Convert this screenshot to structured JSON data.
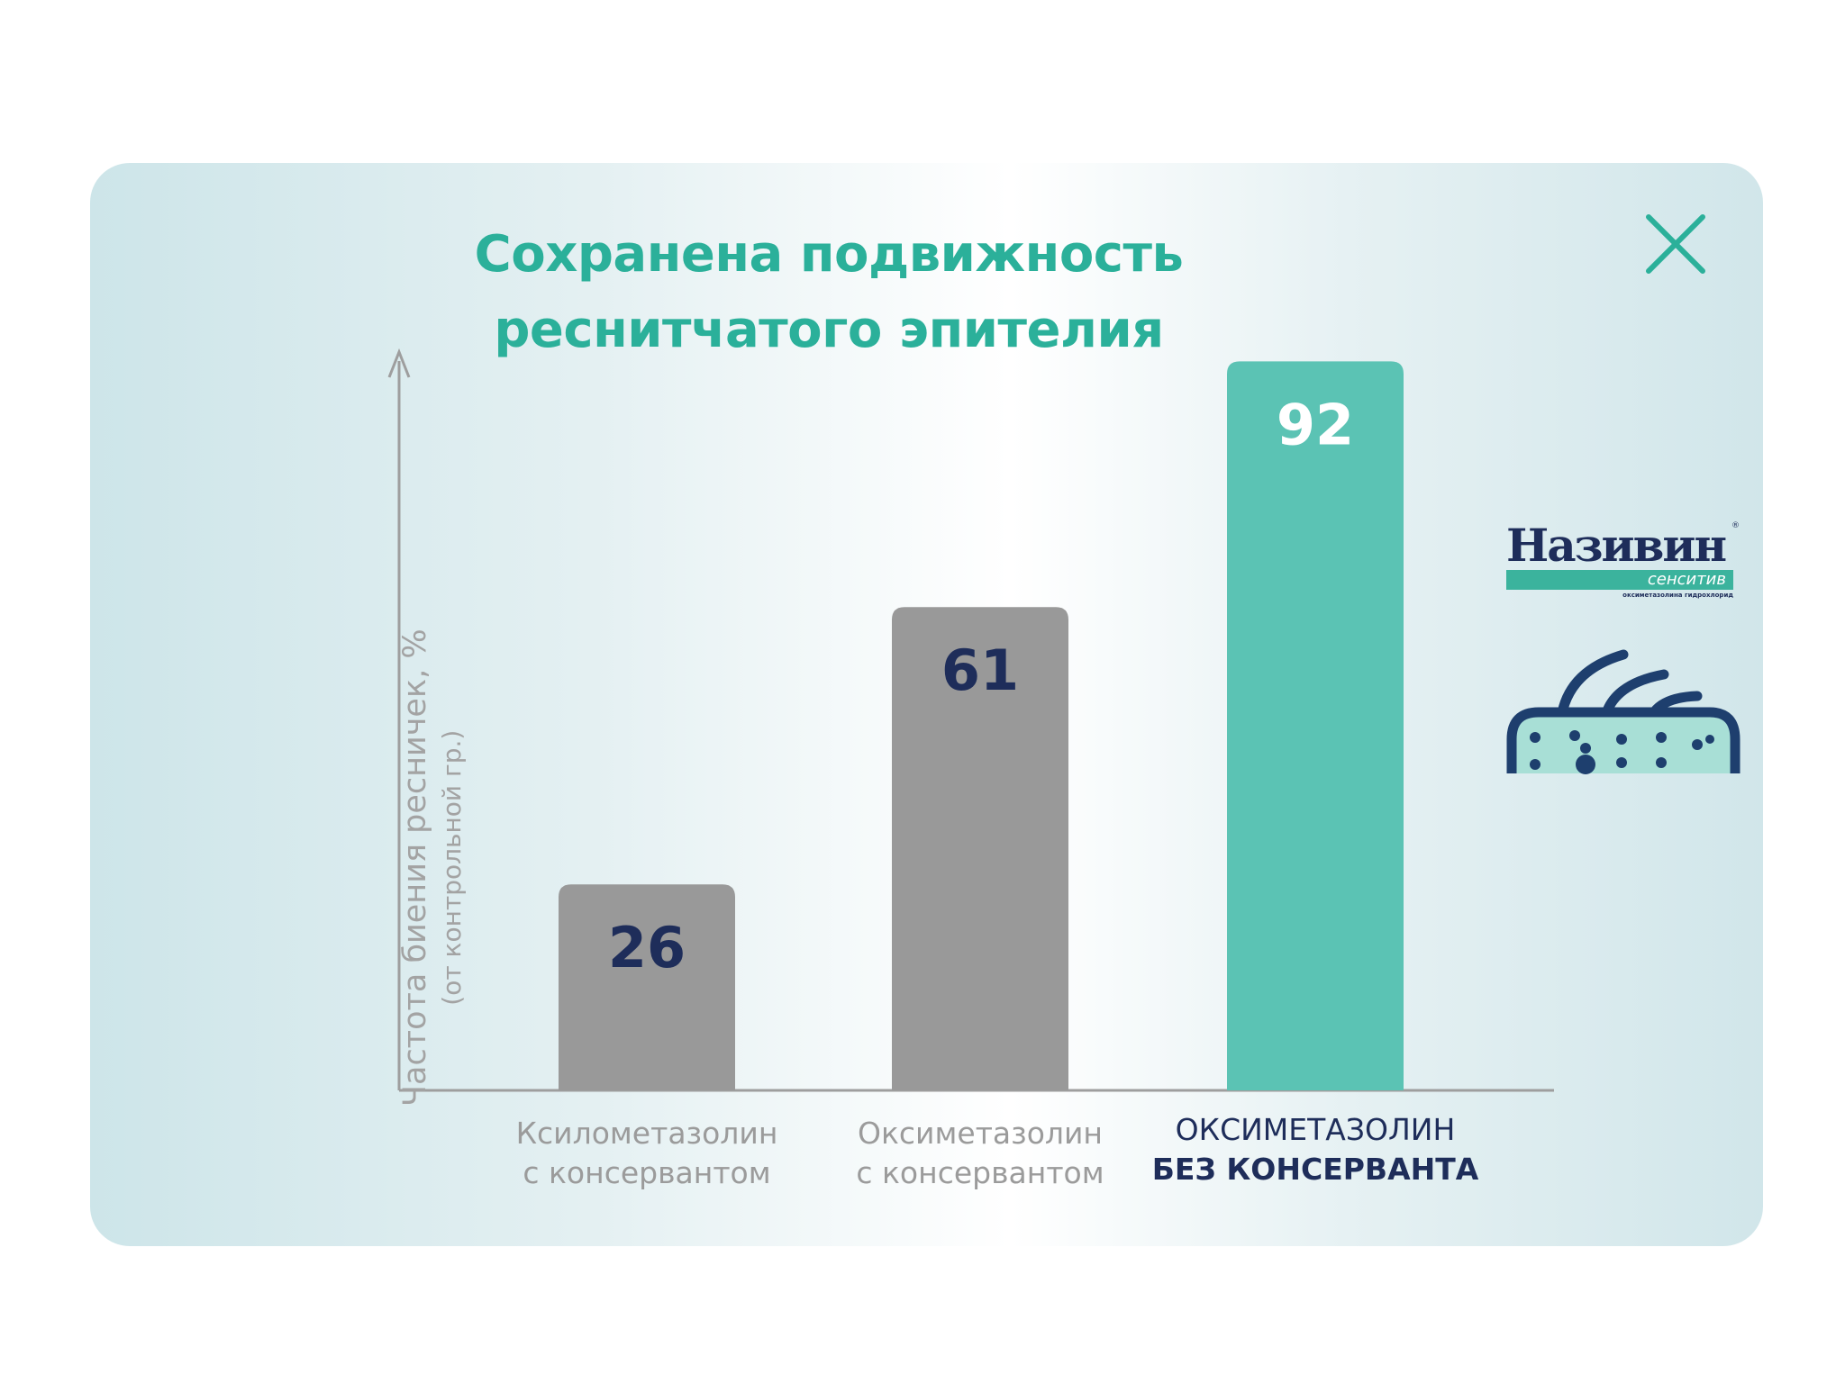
{
  "title": "Сохранена подвижность реснитчатого эпителия",
  "colors": {
    "accent": "#2bb09a",
    "bar_gray": "#999999",
    "bar_teal": "#5bc3b4",
    "navy": "#1e2d5a",
    "axis": "#9e9e9e"
  },
  "close_icon": "close-x-icon",
  "brand": {
    "name": "Називин",
    "sub": "сенситив",
    "tagline": "оксиметазолина гидрохлорид",
    "icon": "cilia-icon"
  },
  "chart_data": {
    "type": "bar",
    "title": "Сохранена подвижность реснитчатого эпителия",
    "ylabel": "Частота биения ресничек, %",
    "ylabel_sub": "(от контрольной гр.)",
    "xlabel": "",
    "ylim": [
      0,
      100
    ],
    "grid": false,
    "categories": [
      [
        "Ксилометазолин",
        "с консервантом"
      ],
      [
        "Оксиметазолин",
        "с консервантом"
      ],
      [
        "ОКСИМЕТАЗОЛИН",
        "БЕЗ КОНСЕРВАНТА"
      ]
    ],
    "values": [
      26,
      61,
      92
    ],
    "bar_colors": [
      "#999999",
      "#999999",
      "#5bc3b4"
    ],
    "label_colors": [
      "#1e2d5a",
      "#1e2d5a",
      "#ffffff"
    ],
    "highlight_index": 2
  }
}
